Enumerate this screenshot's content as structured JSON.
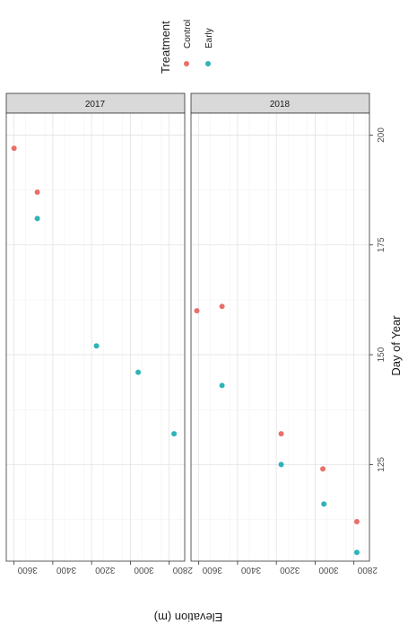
{
  "chart_data": {
    "type": "scatter",
    "orientation_note": "plot rendered rotated 90 degrees clockwise",
    "xlabel": "Elevation (m)",
    "ylabel": "Day of Year",
    "xlim": [
      2720,
      3640
    ],
    "ylim": [
      103,
      205
    ],
    "x_ticks": [
      3600,
      3400,
      3200,
      3000,
      2800
    ],
    "y_ticks": [
      200,
      175,
      150,
      125
    ],
    "grid": true,
    "legend": {
      "title": "Treatment",
      "placement": "top",
      "entries": [
        {
          "name": "Control",
          "color": "#e8706a"
        },
        {
          "name": "Early",
          "color": "#2eb3b6"
        }
      ]
    },
    "facets": [
      {
        "label": "2017",
        "series": [
          {
            "name": "Control",
            "color": "#e8706a",
            "points": [
              {
                "x": 3600,
                "y": 197
              },
              {
                "x": 3480,
                "y": 187
              }
            ]
          },
          {
            "name": "Early",
            "color": "#2eb3b6",
            "points": [
              {
                "x": 3480,
                "y": 181
              },
              {
                "x": 3175,
                "y": 152
              },
              {
                "x": 2960,
                "y": 146
              },
              {
                "x": 2775,
                "y": 132
              }
            ]
          }
        ]
      },
      {
        "label": "2018",
        "series": [
          {
            "name": "Control",
            "color": "#e8706a",
            "points": [
              {
                "x": 3610,
                "y": 160
              },
              {
                "x": 3480,
                "y": 161
              },
              {
                "x": 3175,
                "y": 132
              },
              {
                "x": 2960,
                "y": 124
              },
              {
                "x": 2785,
                "y": 112
              }
            ]
          },
          {
            "name": "Early",
            "color": "#2eb3b6",
            "points": [
              {
                "x": 3480,
                "y": 143
              },
              {
                "x": 3175,
                "y": 125
              },
              {
                "x": 2955,
                "y": 116
              },
              {
                "x": 2785,
                "y": 105
              }
            ]
          }
        ]
      }
    ]
  }
}
